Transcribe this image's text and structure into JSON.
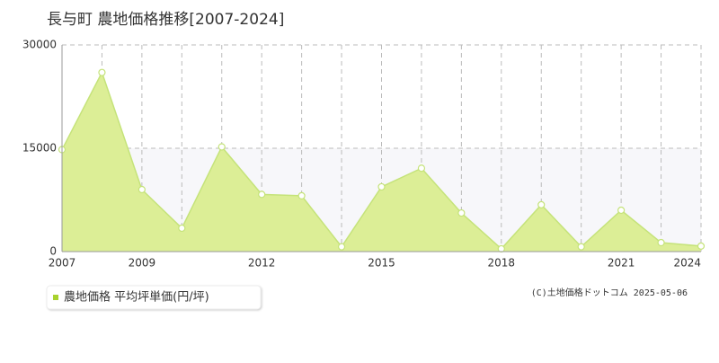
{
  "chart_data": {
    "type": "area",
    "title": "長与町 農地価格推移[2007-2024]",
    "categories": [
      "2007",
      null,
      "2009",
      null,
      null,
      "2012",
      null,
      null,
      "2015",
      null,
      null,
      "2018",
      null,
      null,
      "2021",
      null,
      "2024"
    ],
    "series": [
      {
        "name": "農地価格 平均坪単価(円/坪)",
        "color": "#c5e37a",
        "values": [
          14800,
          26000,
          9000,
          3400,
          15200,
          8300,
          8100,
          700,
          9400,
          12100,
          5600,
          400,
          6800,
          700,
          6000,
          1300,
          800
        ]
      }
    ],
    "ylim": [
      0,
      30000
    ],
    "yticks": [
      0,
      15000,
      30000
    ],
    "grid": true,
    "credit": "(C)土地価格ドットコム 2025-05-06"
  }
}
